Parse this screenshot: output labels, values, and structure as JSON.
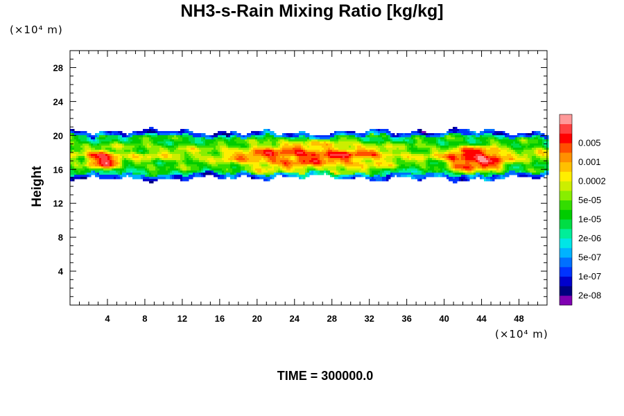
{
  "title": "NH3-s-Rain Mixing Ratio [kg/kg]",
  "y_unit": "(×10⁴ m)",
  "x_unit": "(×10⁴ m)",
  "ylabel": "Height",
  "footer": "TIME = 300000.0",
  "chart_data": {
    "type": "heatmap",
    "title": "NH3-s-Rain Mixing Ratio [kg/kg]",
    "xlabel": "",
    "ylabel": "Height",
    "xlim": [
      0,
      51
    ],
    "ylim": [
      0,
      30
    ],
    "x_ticks": [
      "4",
      "8",
      "12",
      "16",
      "20",
      "24",
      "28",
      "32",
      "36",
      "40",
      "44",
      "48"
    ],
    "y_ticks": [
      "4",
      "8",
      "12",
      "16",
      "20",
      "24",
      "28"
    ],
    "field": {
      "description_bounds": "cloud layer between roughly 15.5 and 20.5 (×10^4 m) across the full domain",
      "cloud_layer": {
        "bottom": 15.5,
        "top": 20.5
      },
      "peak_regions": [
        {
          "x": [
            2.5,
            4.5
          ],
          "y": [
            16.5,
            17.5
          ],
          "level": 14
        },
        {
          "x": [
            18,
            33
          ],
          "y": [
            15.5,
            19
          ],
          "level": 12
        },
        {
          "x": [
            41,
            46
          ],
          "y": [
            16,
            18
          ],
          "level": 14
        }
      ]
    },
    "colorbar": {
      "colors": [
        "#7f00b2",
        "#00007f",
        "#0000cc",
        "#0033ff",
        "#0070ff",
        "#00b2ff",
        "#00e6e6",
        "#00ee99",
        "#00dd44",
        "#00cc00",
        "#33dd00",
        "#88ee00",
        "#ccee00",
        "#ffee00",
        "#ffc000",
        "#ff9000",
        "#ff5000",
        "#ff0000",
        "#ff4040",
        "#ff9999"
      ],
      "labels": [
        "2e-08",
        "1e-07",
        "5e-07",
        "2e-06",
        "1e-05",
        "5e-05",
        "0.0002",
        "0.001",
        "0.005"
      ]
    }
  }
}
